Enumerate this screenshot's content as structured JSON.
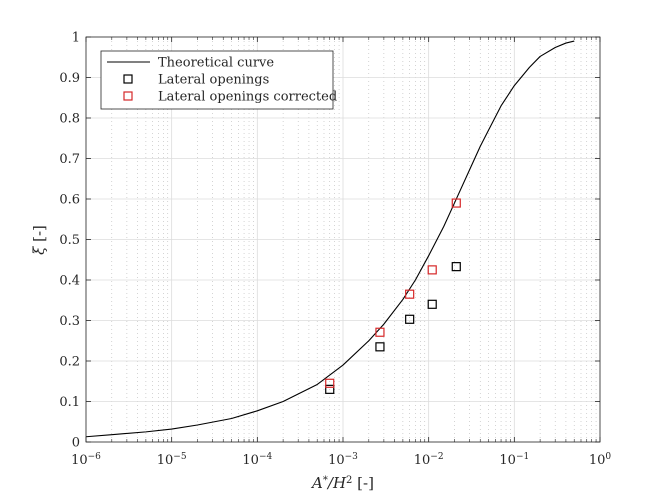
{
  "chart_data": {
    "type": "scatter",
    "xscale": "log",
    "xlim": [
      1e-06,
      1
    ],
    "ylim": [
      0,
      1
    ],
    "grid": true,
    "legend_position": "top-left",
    "xlabel": {
      "a": "A",
      "star": "*",
      "slash": "/H",
      "two": "2",
      "unit": " [-]"
    },
    "ylabel": {
      "xi": "ξ",
      "unit": " [-]"
    },
    "x_ticks": [
      {
        "base": "10",
        "exp": "−6",
        "value": 1e-06
      },
      {
        "base": "10",
        "exp": "−5",
        "value": 1e-05
      },
      {
        "base": "10",
        "exp": "−4",
        "value": 0.0001
      },
      {
        "base": "10",
        "exp": "−3",
        "value": 0.001
      },
      {
        "base": "10",
        "exp": "−2",
        "value": 0.01
      },
      {
        "base": "10",
        "exp": "−1",
        "value": 0.1
      },
      {
        "base": "10",
        "exp": "0",
        "value": 1
      }
    ],
    "y_ticks": [
      {
        "label": "0",
        "value": 0
      },
      {
        "label": "0.1",
        "value": 0.1
      },
      {
        "label": "0.2",
        "value": 0.2
      },
      {
        "label": "0.3",
        "value": 0.3
      },
      {
        "label": "0.4",
        "value": 0.4
      },
      {
        "label": "0.5",
        "value": 0.5
      },
      {
        "label": "0.6",
        "value": 0.6
      },
      {
        "label": "0.7",
        "value": 0.7
      },
      {
        "label": "0.8",
        "value": 0.8
      },
      {
        "label": "0.9",
        "value": 0.9
      },
      {
        "label": "1",
        "value": 1
      }
    ],
    "series": [
      {
        "name": "Theoretical curve",
        "kind": "line",
        "color": "#000000",
        "x": [
          1e-06,
          2e-06,
          5e-06,
          1e-05,
          2e-05,
          5e-05,
          0.0001,
          0.0002,
          0.0005,
          0.001,
          0.002,
          0.003,
          0.005,
          0.007,
          0.01,
          0.015,
          0.02,
          0.03,
          0.04,
          0.05,
          0.07,
          0.1,
          0.15,
          0.2,
          0.3,
          0.4,
          0.5
        ],
        "y": [
          0.013,
          0.018,
          0.025,
          0.032,
          0.042,
          0.058,
          0.077,
          0.1,
          0.142,
          0.19,
          0.25,
          0.291,
          0.352,
          0.4,
          0.46,
          0.532,
          0.59,
          0.672,
          0.73,
          0.77,
          0.83,
          0.88,
          0.925,
          0.952,
          0.974,
          0.985,
          0.99
        ]
      },
      {
        "name": "Lateral openings",
        "kind": "marker",
        "color": "#000000",
        "x": [
          0.0007,
          0.0027,
          0.006,
          0.011,
          0.021
        ],
        "y": [
          0.13,
          0.235,
          0.303,
          0.34,
          0.433
        ]
      },
      {
        "name": "Lateral openings corrected",
        "kind": "marker",
        "color": "#d62728",
        "x": [
          0.0007,
          0.0027,
          0.006,
          0.011,
          0.021
        ],
        "y": [
          0.145,
          0.271,
          0.365,
          0.425,
          0.59
        ]
      }
    ]
  }
}
